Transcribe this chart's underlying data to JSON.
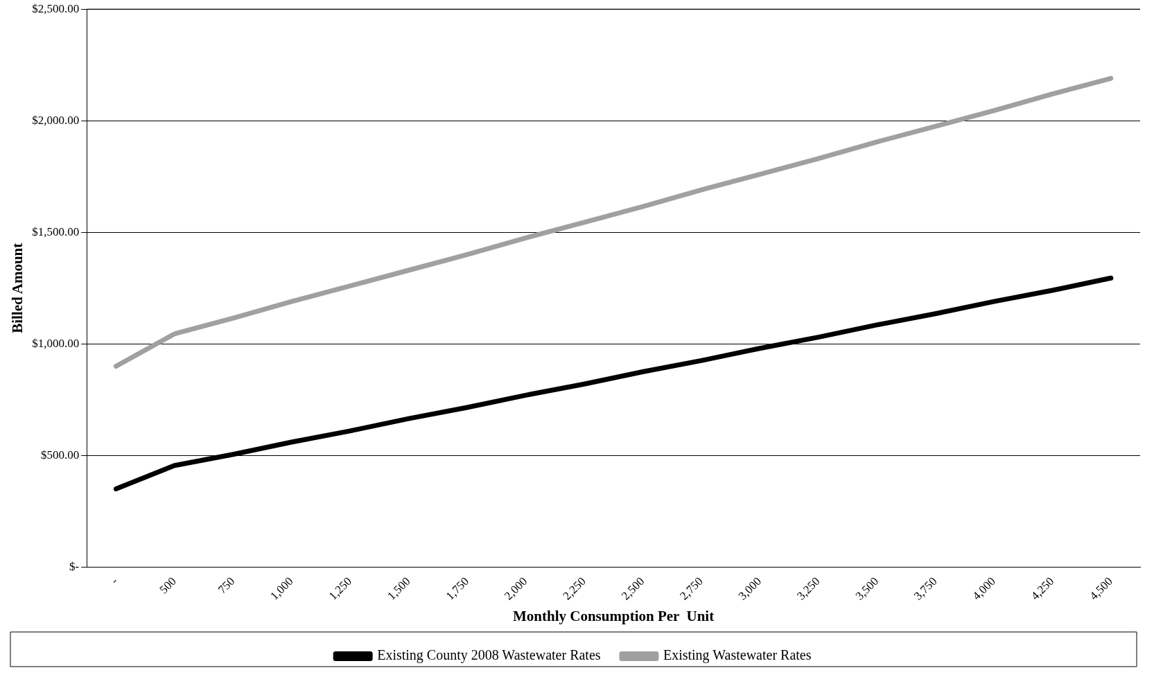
{
  "chart_data": {
    "type": "line",
    "xlabel": "Monthly Consumption Per  Unit",
    "ylabel": "Billed Amount",
    "categories": [
      "-",
      "500",
      "750",
      "1,000",
      "1,250",
      "1,500",
      "1,750",
      "2,000",
      "2,250",
      "2,500",
      "2,750",
      "3,000",
      "3,250",
      "3,500",
      "3,750",
      "4,000",
      "4,250",
      "4,500"
    ],
    "series": [
      {
        "name": "Existing County 2008 Wastewater Rates",
        "color": "#000000",
        "values": [
          350,
          455,
          505,
          560,
          610,
          665,
          715,
          770,
          820,
          875,
          925,
          980,
          1030,
          1085,
          1135,
          1190,
          1240,
          1295
        ]
      },
      {
        "name": "Existing Wastewater Rates",
        "color": "#a0a0a0",
        "values": [
          900,
          1045,
          1115,
          1190,
          1260,
          1330,
          1400,
          1475,
          1545,
          1615,
          1690,
          1760,
          1830,
          1905,
          1975,
          2045,
          2120,
          2190
        ]
      }
    ],
    "ylim": [
      0,
      2500
    ],
    "yticks": [
      {
        "value": 0,
        "label": "$-"
      },
      {
        "value": 500,
        "label": "$500.00"
      },
      {
        "value": 1000,
        "label": "$1,000.00"
      },
      {
        "value": 1500,
        "label": "$1,500.00"
      },
      {
        "value": 2000,
        "label": "$2,000.00"
      },
      {
        "value": 2500,
        "label": "$2,500.00"
      }
    ],
    "grid": "y",
    "legend": "bottom",
    "marker": "none",
    "line_style": "solid"
  }
}
